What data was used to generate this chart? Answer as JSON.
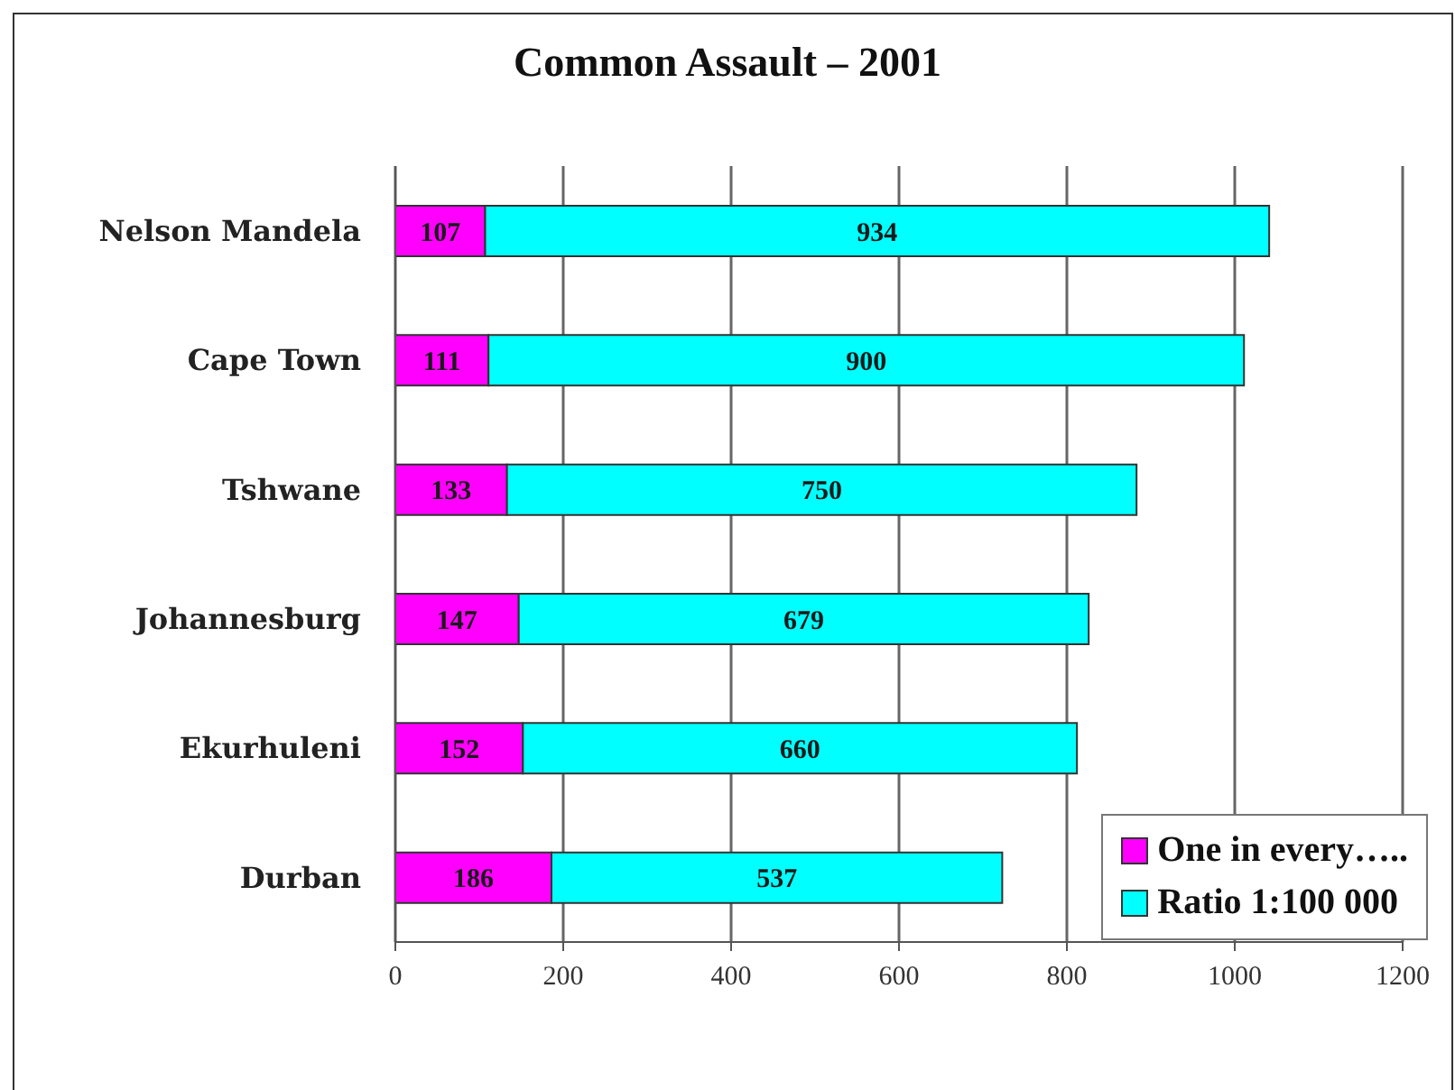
{
  "chart_data": {
    "type": "bar",
    "orientation": "horizontal",
    "stacked": true,
    "title": "Common Assault – 2001",
    "categories": [
      "Nelson Mandela",
      "Cape Town",
      "Tshwane",
      "Johannesburg",
      "Ekurhuleni",
      "Durban"
    ],
    "series": [
      {
        "name": "One in every…..",
        "color": "#ff00ff",
        "values": [
          107,
          111,
          133,
          147,
          152,
          186
        ]
      },
      {
        "name": "Ratio 1:100 000",
        "color": "#00ffff",
        "values": [
          934,
          900,
          750,
          679,
          660,
          537
        ]
      }
    ],
    "xlim": [
      0,
      1200
    ],
    "xticks": [
      0,
      200,
      400,
      600,
      800,
      1000,
      1200
    ],
    "grid": "x",
    "legend": "bottom right",
    "data_labels": true
  }
}
